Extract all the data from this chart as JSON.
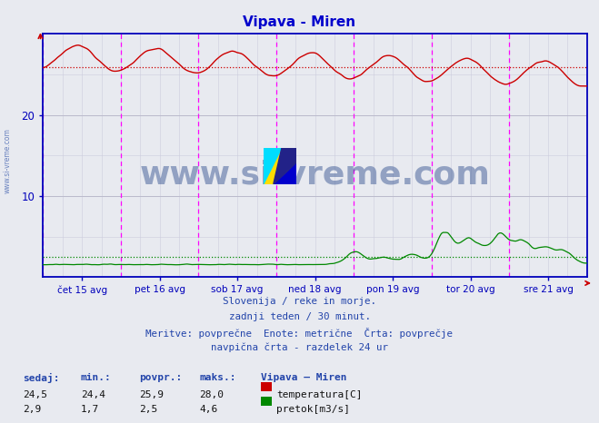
{
  "title": "Vipava - Miren",
  "title_color": "#0000cc",
  "bg_color": "#e8eaf0",
  "axis_color": "#0000bb",
  "grid_color": "#bbbbcc",
  "grid_minor_color": "#ccccdd",
  "ylim": [
    0,
    30
  ],
  "yticks": [
    10,
    20
  ],
  "vline_color": "#ff00ff",
  "vline_positions": [
    0,
    48,
    96,
    144,
    192,
    240,
    288,
    336
  ],
  "xtick_labels": [
    "čet 15 avg",
    "pet 16 avg",
    "sob 17 avg",
    "ned 18 avg",
    "pon 19 avg",
    "tor 20 avg",
    "sre 21 avg"
  ],
  "xtick_positions": [
    24,
    72,
    120,
    168,
    216,
    264,
    312
  ],
  "temp_color": "#cc0000",
  "flow_color": "#008800",
  "temp_avg": 25.9,
  "flow_avg": 2.5,
  "watermark_text": "www.si-vreme.com",
  "watermark_color": "#2a4a8a",
  "watermark_alpha": 0.45,
  "side_watermark_color": "#3355aa",
  "side_watermark_alpha": 0.7,
  "footer_color": "#2244aa",
  "footer_line1": "Slovenija / reke in morje.",
  "footer_line2": "zadnji teden / 30 minut.",
  "footer_line3": "Meritve: povprečne  Enote: metrične  Črta: povprečje",
  "footer_line4": "navpična črta - razdelek 24 ur",
  "legend_title": "Vipava – Miren",
  "legend_items": [
    "temperatura[C]",
    "pretok[m3/s]"
  ],
  "legend_colors": [
    "#cc0000",
    "#008800"
  ],
  "stats_headers": [
    "sedaj:",
    "min.:",
    "povpr.:",
    "maks.:"
  ],
  "temp_stats": [
    "24,5",
    "24,4",
    "25,9",
    "28,0"
  ],
  "flow_stats": [
    "2,9",
    "1,7",
    "2,5",
    "4,6"
  ],
  "n_points": 337,
  "arrow_color": "#cc0000"
}
